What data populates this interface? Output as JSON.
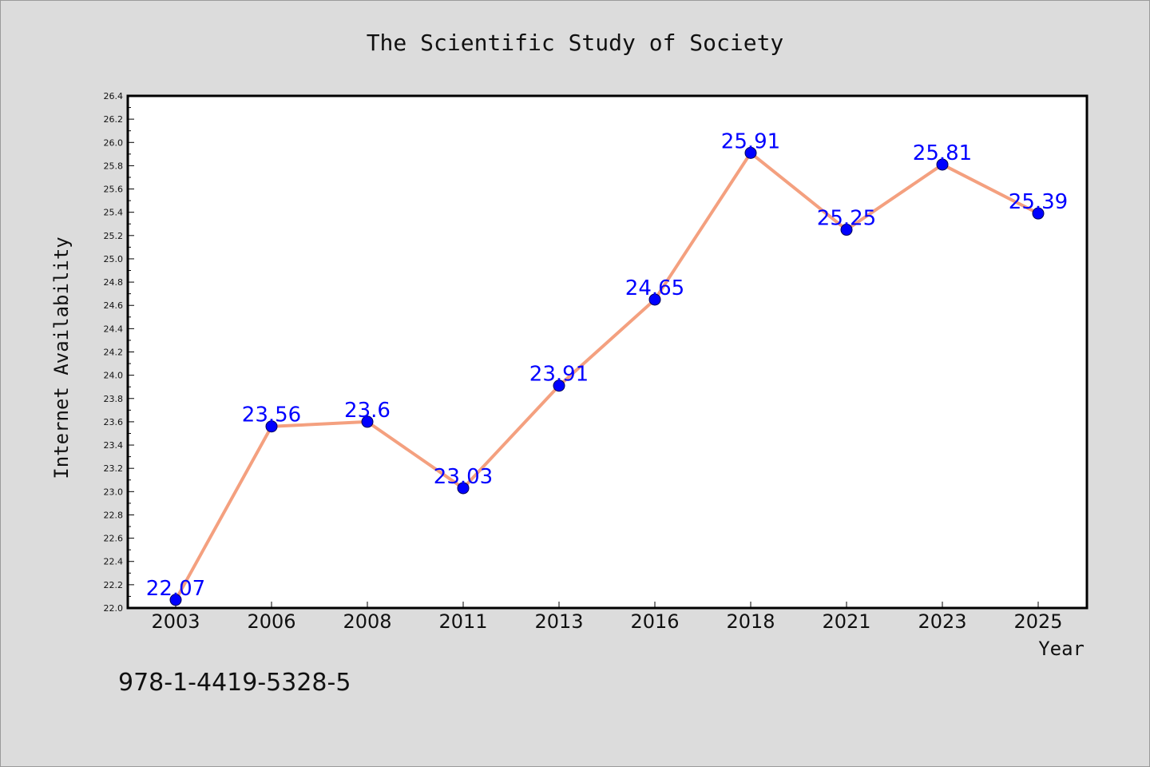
{
  "chart_data": {
    "type": "line",
    "title": "The Scientific Study of Society",
    "xlabel": "Year",
    "ylabel": "Internet Availability",
    "categories": [
      "2003",
      "2006",
      "2008",
      "2011",
      "2013",
      "2016",
      "2018",
      "2021",
      "2023",
      "2025"
    ],
    "series": [
      {
        "values": [
          22.07,
          23.56,
          23.6,
          23.03,
          23.91,
          24.65,
          25.91,
          25.25,
          25.81,
          25.39
        ],
        "data_labels": [
          "22.07",
          "23.56",
          "23.6",
          "23.03",
          "23.91",
          "24.65",
          "25.91",
          "25.25",
          "25.81",
          "25.39"
        ],
        "line_color": "#f4a07f",
        "marker_color": "#0000ff"
      }
    ],
    "ylim": [
      22.0,
      26.4
    ],
    "yticks": [
      "22.0",
      "22.2",
      "22.4",
      "22.6",
      "22.8",
      "23.0",
      "23.2",
      "23.4",
      "23.6",
      "23.8",
      "24.0",
      "24.2",
      "24.4",
      "24.6",
      "24.8",
      "25.0",
      "25.2",
      "25.4",
      "25.6",
      "25.8",
      "26.0",
      "26.2",
      "26.4"
    ],
    "grid": false,
    "legend": "none"
  },
  "footer": {
    "isbn": "978-1-4419-5328-5"
  }
}
